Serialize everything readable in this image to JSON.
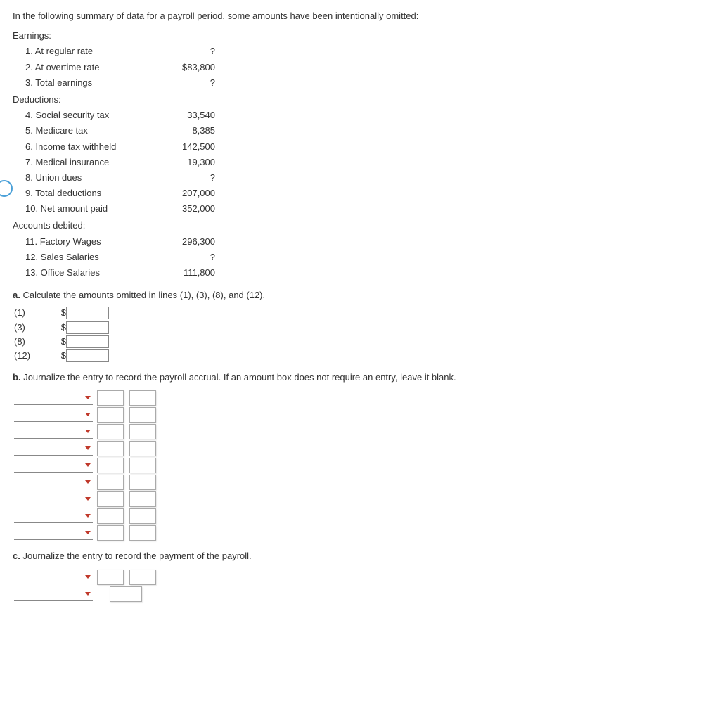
{
  "intro": "In the following summary of data for a payroll period, some amounts have been intentionally omitted:",
  "sections": {
    "earnings": {
      "heading": "Earnings:",
      "items": [
        {
          "label": "1. At regular rate",
          "value": "?"
        },
        {
          "label": "2. At overtime rate",
          "value": "$83,800"
        },
        {
          "label": "3. Total earnings",
          "value": "?"
        }
      ]
    },
    "deductions": {
      "heading": "Deductions:",
      "items": [
        {
          "label": "4. Social security tax",
          "value": "33,540"
        },
        {
          "label": "5. Medicare tax",
          "value": "8,385"
        },
        {
          "label": "6. Income tax withheld",
          "value": "142,500"
        },
        {
          "label": "7. Medical insurance",
          "value": "19,300"
        },
        {
          "label": "8. Union dues",
          "value": "?"
        },
        {
          "label": "9. Total deductions",
          "value": "207,000"
        },
        {
          "label": "10. Net amount paid",
          "value": "352,000"
        }
      ]
    },
    "accounts": {
      "heading": "Accounts debited:",
      "items": [
        {
          "label": "11. Factory Wages",
          "value": "296,300"
        },
        {
          "label": "12. Sales Salaries",
          "value": "?"
        },
        {
          "label": "13. Office Salaries",
          "value": "111,800"
        }
      ]
    }
  },
  "part_a": {
    "letter": "a.",
    "text": "Calculate the amounts omitted in lines (1), (3), (8), and (12).",
    "rows": [
      {
        "label": "(1)",
        "prefix": "$"
      },
      {
        "label": "(3)",
        "prefix": "$"
      },
      {
        "label": "(8)",
        "prefix": "$"
      },
      {
        "label": "(12)",
        "prefix": "$"
      }
    ]
  },
  "part_b": {
    "letter": "b.",
    "text": "Journalize the entry to record the payroll accrual. If an amount box does not require an entry, leave it blank.",
    "row_count": 9
  },
  "part_c": {
    "letter": "c.",
    "text": "Journalize the entry to record the payment of the payroll.",
    "row_count": 2
  },
  "style": {
    "chevron_color": "#c0392b",
    "chevron_size": 10,
    "input_border": "#888888",
    "underline_color": "#888888",
    "badge_border": "#4aa0d8"
  }
}
